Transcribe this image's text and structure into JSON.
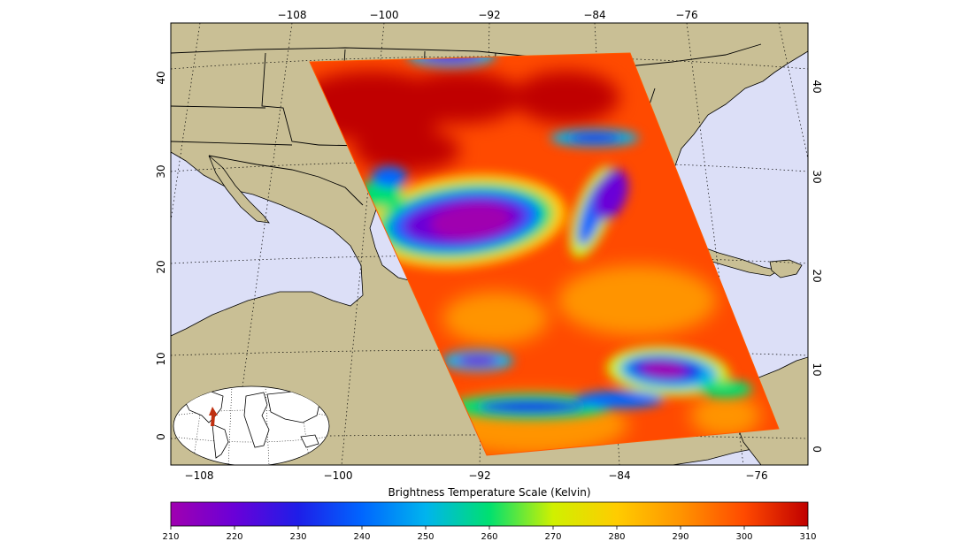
{
  "map": {
    "top_lon_ticks": [
      "−108",
      "−100",
      "−92",
      "−84",
      "−76"
    ],
    "bottom_lon_ticks": [
      "−108",
      "−100",
      "−92",
      "−84",
      "−76"
    ],
    "left_lat_ticks": [
      "40",
      "30",
      "20",
      "10",
      "0"
    ],
    "right_lat_ticks": [
      "40",
      "30",
      "20",
      "10",
      "0"
    ],
    "colors": {
      "ocean": "#dcdff7",
      "land": "#c9bf95",
      "border": "#000000",
      "graticule": "#000000"
    }
  },
  "colorbar": {
    "title": "Brightness Temperature Scale (Kelvin)",
    "ticks": [
      "210",
      "220",
      "230",
      "240",
      "250",
      "260",
      "270",
      "280",
      "290",
      "300",
      "310"
    ],
    "stops": [
      "#a000b0",
      "#6a00d8",
      "#1e1ee8",
      "#0066ff",
      "#00b4ee",
      "#00e070",
      "#d0f000",
      "#ffcc00",
      "#ff9400",
      "#ff4a00",
      "#c00000"
    ]
  },
  "inset": {
    "icon": "arrow-icon",
    "arrow_color": "#c03010"
  }
}
